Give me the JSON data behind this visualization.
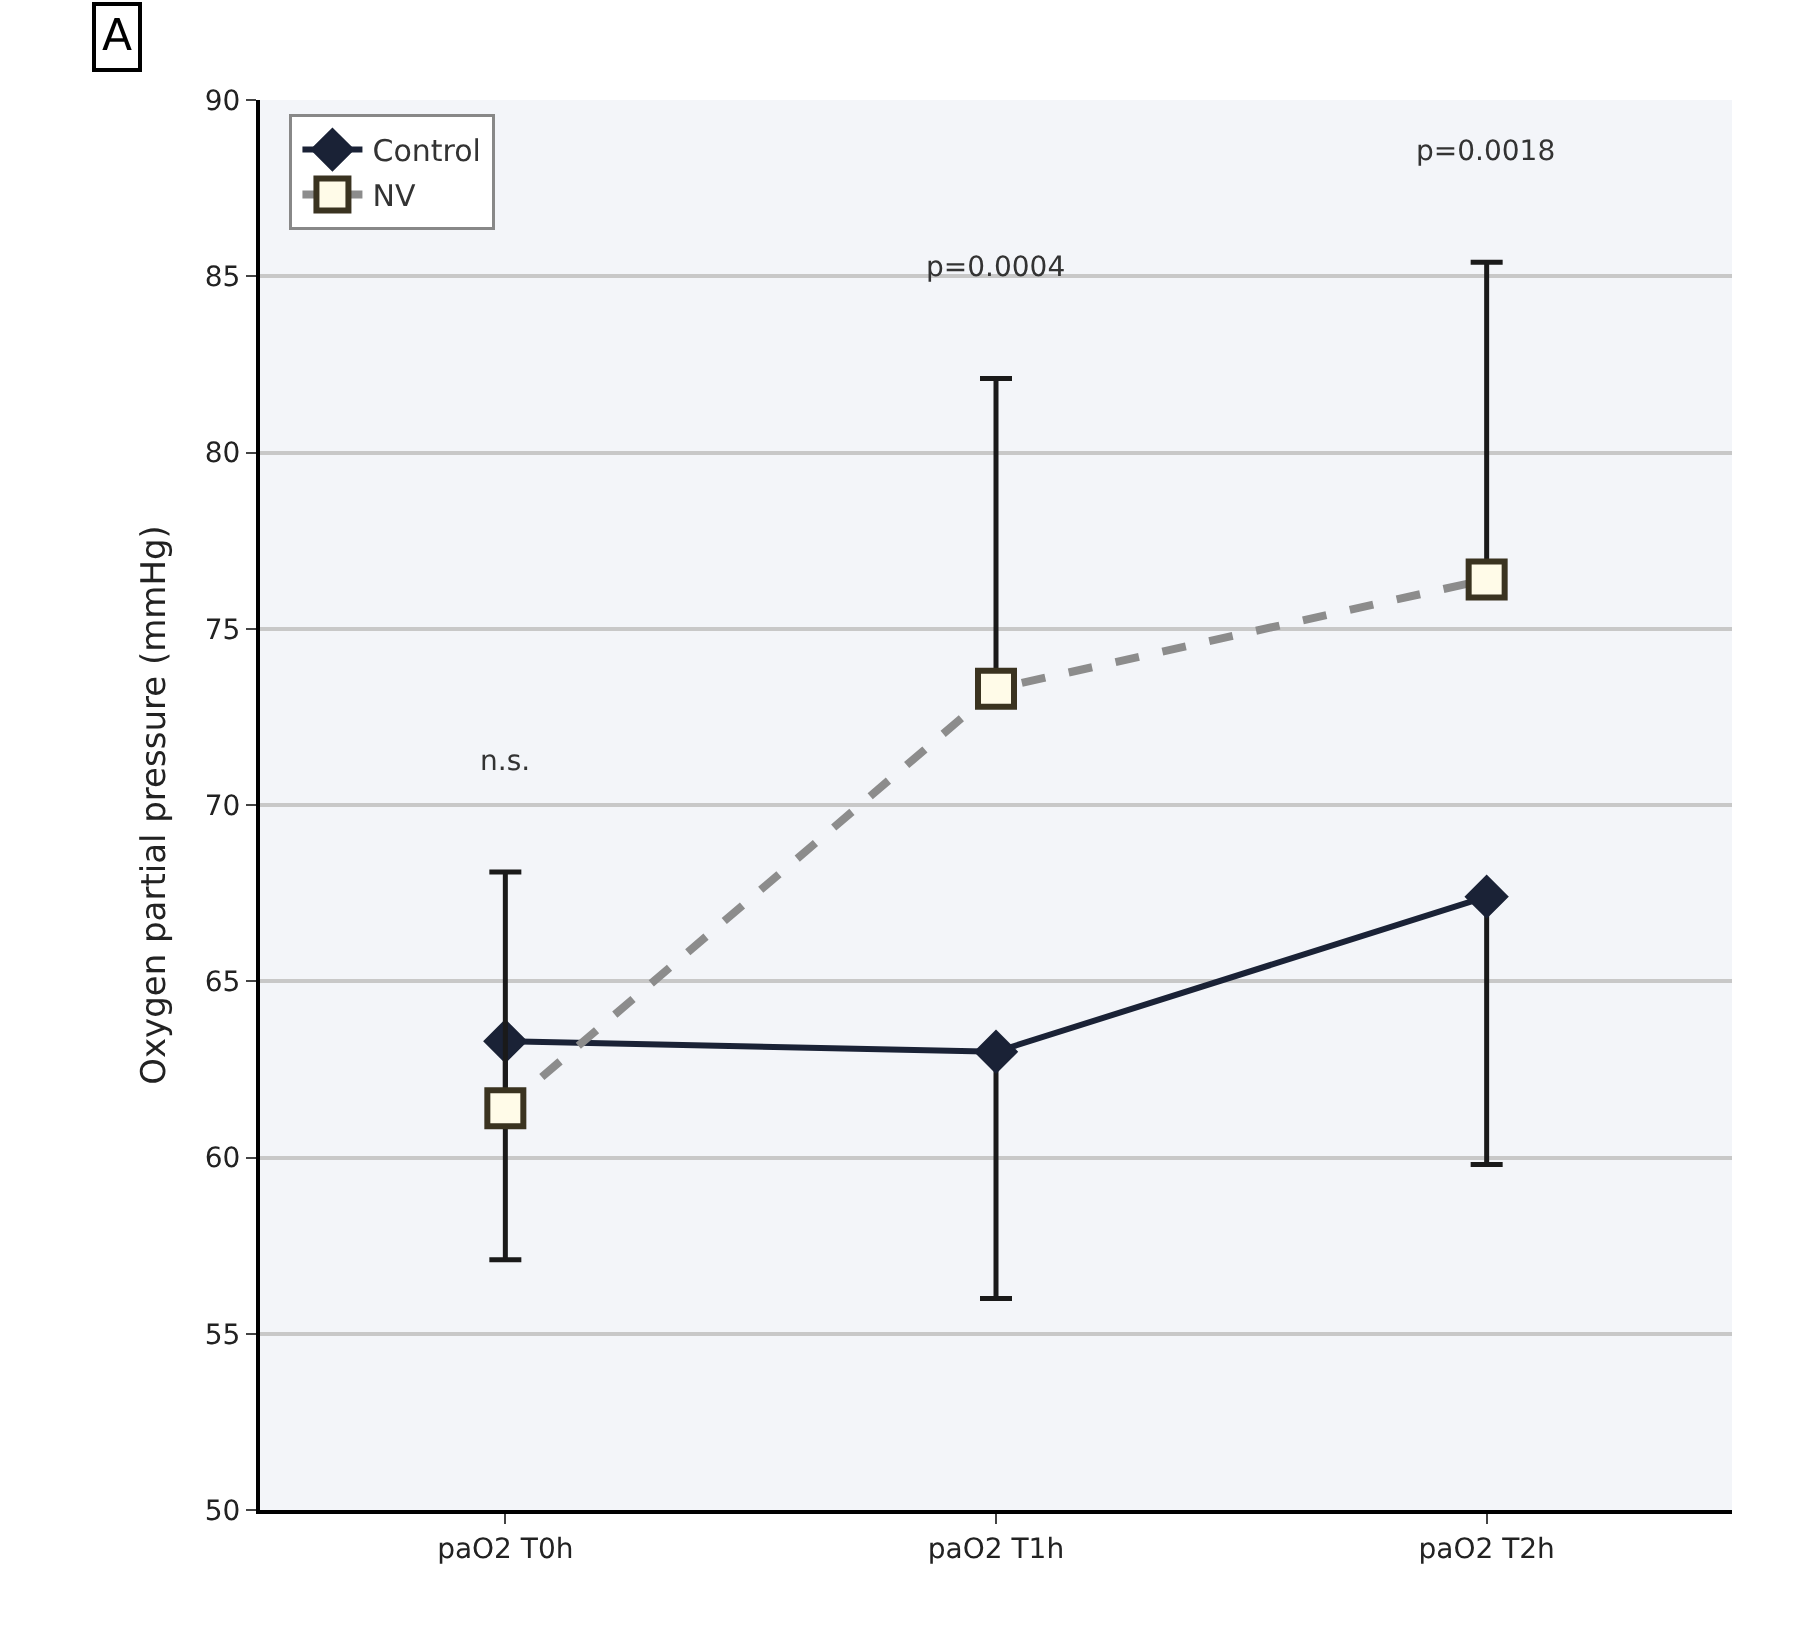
{
  "chart_data": {
    "type": "line",
    "ylabel": "Oxygen partial pressure (mmHg)",
    "categories": [
      "paO2 T0h",
      "paO2 T1h",
      "paO2 T2h"
    ],
    "series": [
      {
        "name": "Control",
        "color": "#1a2236",
        "values": [
          63.3,
          63.0,
          67.4
        ],
        "errors": [
          [
            57.1,
            63.3
          ],
          [
            56.0,
            63.0
          ],
          [
            59.8,
            67.4
          ]
        ],
        "marker": "diamond",
        "line_style": "solid"
      },
      {
        "name": "NV",
        "color": "#8c8c8c",
        "values": [
          61.4,
          73.3,
          76.4
        ],
        "errors": [
          [
            61.4,
            68.1
          ],
          [
            73.3,
            82.1
          ],
          [
            76.4,
            85.4
          ]
        ],
        "marker": "square",
        "line_style": "dashed"
      }
    ],
    "ylim": [
      50,
      90
    ],
    "yticks": [
      50,
      55,
      60,
      65,
      70,
      75,
      80,
      85,
      90
    ],
    "grid": "y",
    "legend": "top left",
    "annotations": [
      "A",
      "n.s.",
      "p=0.0004",
      "p=0.0018"
    ]
  }
}
